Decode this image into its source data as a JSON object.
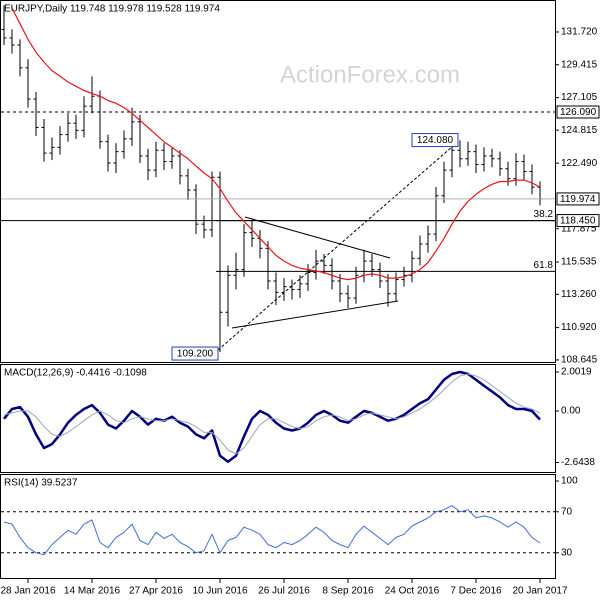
{
  "chart_data": [
    {
      "type": "ohlc",
      "title": "EURJPY,Daily 119.748 119.978 119.528 119.974",
      "watermark": "ActionForex.com",
      "color": "#000000",
      "categories": [
        null,
        null,
        null,
        "28 Jan 2016",
        null,
        null,
        null,
        null,
        null,
        null,
        null,
        "14 Mar 2016",
        null,
        null,
        null,
        null,
        null,
        null,
        null,
        "27 Apr 2016",
        null,
        null,
        null,
        null,
        null,
        null,
        null,
        "10 Jun 2016",
        null,
        null,
        null,
        null,
        null,
        null,
        null,
        "26 Jul 2016",
        null,
        null,
        null,
        null,
        null,
        null,
        null,
        "8 Sep 2016",
        null,
        null,
        null,
        null,
        null,
        null,
        null,
        "24 Oct 2016",
        null,
        null,
        null,
        null,
        null,
        null,
        null,
        "7 Dec 2016",
        null,
        null,
        null,
        null,
        null,
        null,
        null,
        "20 Jan 2017"
      ],
      "open": [
        131.9,
        131.3,
        130.8,
        129.2,
        127.0,
        125.0,
        123.2,
        123.6,
        124.5,
        125.3,
        124.8,
        126.5,
        127.2,
        124.0,
        122.5,
        123.3,
        124.2,
        125.4,
        123.0,
        122.0,
        123.4,
        122.6,
        123.0,
        121.6,
        120.6,
        118.2,
        117.8,
        121.5,
        112.0,
        114.6,
        115.0,
        117.6,
        117.2,
        116.5,
        114.2,
        113.4,
        113.8,
        113.6,
        114.0,
        114.8,
        115.6,
        115.3,
        114.2,
        113.3,
        113.0,
        114.6,
        115.6,
        115.0,
        114.2,
        113.3,
        114.3,
        114.6,
        115.8,
        116.8,
        117.5,
        120.2,
        122.0,
        123.4,
        122.8,
        123.3,
        122.4,
        123.0,
        122.8,
        122.1,
        121.4,
        122.6,
        121.9,
        120.8
      ],
      "high": [
        133.6,
        131.9,
        131.2,
        129.8,
        127.5,
        125.6,
        124.3,
        125.1,
        126.0,
        125.9,
        127.2,
        128.6,
        127.6,
        124.5,
        123.9,
        124.8,
        126.4,
        125.9,
        123.5,
        124.0,
        123.9,
        123.6,
        123.4,
        122.1,
        121.0,
        118.8,
        121.9,
        121.9,
        115.3,
        116.2,
        118.2,
        118.5,
        117.8,
        117.0,
        114.8,
        114.4,
        114.3,
        114.6,
        115.4,
        116.4,
        116.1,
        115.8,
        114.7,
        113.9,
        115.2,
        116.4,
        116.1,
        115.5,
        114.7,
        114.8,
        115.2,
        116.3,
        117.4,
        118.1,
        120.8,
        122.6,
        124.0,
        124.08,
        124.0,
        123.8,
        123.6,
        123.5,
        123.3,
        122.6,
        123.2,
        123.1,
        122.4,
        121.2
      ],
      "low": [
        130.8,
        130.2,
        128.6,
        126.4,
        124.4,
        122.6,
        122.7,
        123.1,
        124.0,
        124.2,
        124.3,
        126.0,
        123.5,
        121.9,
        121.8,
        122.8,
        123.7,
        122.5,
        121.3,
        121.5,
        122.0,
        122.1,
        121.0,
        119.9,
        117.5,
        117.2,
        117.3,
        109.2,
        111.0,
        113.6,
        114.5,
        116.6,
        115.8,
        113.6,
        112.5,
        112.8,
        112.9,
        113.0,
        113.5,
        114.3,
        114.7,
        113.6,
        112.7,
        112.3,
        112.6,
        114.1,
        114.5,
        113.7,
        112.4,
        112.8,
        113.8,
        114.1,
        115.3,
        116.2,
        117.0,
        119.7,
        121.5,
        122.2,
        122.3,
        121.8,
        121.9,
        122.2,
        121.6,
        120.9,
        120.9,
        121.3,
        120.3,
        119.528
      ],
      "close": [
        131.3,
        130.8,
        129.2,
        127.0,
        125.0,
        123.2,
        123.6,
        124.5,
        125.3,
        124.8,
        126.5,
        127.2,
        124.0,
        122.5,
        123.3,
        124.2,
        125.4,
        123.0,
        122.0,
        123.4,
        122.6,
        123.0,
        121.6,
        120.6,
        118.2,
        117.8,
        121.5,
        112.0,
        114.6,
        115.0,
        117.6,
        117.2,
        116.5,
        114.2,
        113.4,
        113.8,
        113.6,
        114.0,
        114.8,
        115.6,
        115.3,
        114.2,
        113.3,
        113.0,
        114.6,
        115.6,
        115.0,
        114.2,
        113.3,
        114.3,
        114.6,
        115.8,
        116.8,
        117.5,
        120.2,
        122.0,
        123.4,
        122.8,
        123.3,
        122.4,
        123.0,
        122.8,
        122.1,
        121.4,
        122.6,
        121.9,
        120.8,
        119.974
      ],
      "series": [
        {
          "color": "#e8151b",
          "values": [
            null,
            133.4,
            132.3,
            131.2,
            130.3,
            129.6,
            129.0,
            128.6,
            128.2,
            127.9,
            127.6,
            127.4,
            127.2,
            126.9,
            126.7,
            126.4,
            126.0,
            125.5,
            125.0,
            124.5,
            124.0,
            123.6,
            123.2,
            122.8,
            122.3,
            121.8,
            121.4,
            120.7,
            119.8,
            119.0,
            118.4,
            117.8,
            117.2,
            116.6,
            116.0,
            115.6,
            115.3,
            115.1,
            115.0,
            114.9,
            114.8,
            114.6,
            114.4,
            114.3,
            114.4,
            114.6,
            114.7,
            114.6,
            114.4,
            114.4,
            114.5,
            114.7,
            115.0,
            115.5,
            116.3,
            117.2,
            118.2,
            119.1,
            119.8,
            120.3,
            120.7,
            121.0,
            121.2,
            121.2,
            121.3,
            121.3,
            121.1,
            120.8
          ]
        }
      ],
      "ylim": [
        108.5,
        133.9
      ],
      "yticks": [
        {
          "value": 131.72,
          "label": "131.720"
        },
        129.415,
        127.105,
        124.815,
        {
          "value": 122.49,
          "label": "122.490"
        },
        117.875,
        115.535,
        {
          "value": 113.26,
          "label": "113.260"
        },
        {
          "value": 110.92,
          "label": "110.920"
        },
        108.645
      ],
      "price_lines": [
        {
          "value": 126.09,
          "label": "126.090",
          "style": "dashed",
          "color": "#000000"
        },
        {
          "value": 119.974,
          "label": "119.974",
          "style": "solid",
          "color": "#b0b0b0"
        },
        {
          "value": 118.45,
          "label": "118.450",
          "style": "solid",
          "color": "#000000"
        }
      ],
      "fib_levels": [
        {
          "label": "38.2",
          "value": 118.45
        },
        {
          "label": "61.8",
          "value": 114.88
        }
      ],
      "annotations": [
        {
          "label": "124.080",
          "value": 124.08
        },
        {
          "label": "109.200",
          "value": 109.2
        }
      ]
    },
    {
      "type": "line",
      "title": "MACD(12,26,9) -0.4416 -0.1098",
      "series": [
        {
          "color": "#000080",
          "width": 2.5,
          "values": [
            -0.4,
            0.1,
            0.2,
            -0.3,
            -1.2,
            -1.9,
            -1.7,
            -1.2,
            -0.6,
            -0.2,
            0.1,
            0.3,
            -0.1,
            -0.7,
            -0.9,
            -0.5,
            0.0,
            -0.3,
            -0.7,
            -0.4,
            -0.5,
            -0.3,
            -0.6,
            -0.8,
            -1.2,
            -1.4,
            -1.0,
            -2.3,
            -2.6,
            -2.3,
            -1.3,
            -0.4,
            0.0,
            -0.2,
            -0.6,
            -0.9,
            -1.0,
            -0.9,
            -0.6,
            -0.2,
            0.0,
            -0.2,
            -0.5,
            -0.6,
            -0.3,
            0.0,
            -0.1,
            -0.3,
            -0.5,
            -0.4,
            -0.2,
            0.1,
            0.4,
            0.6,
            1.1,
            1.6,
            1.9,
            2.0,
            1.9,
            1.6,
            1.3,
            1.0,
            0.7,
            0.3,
            0.1,
            0.1,
            0.0,
            -0.4416
          ]
        },
        {
          "color": "#9aa7b8",
          "width": 1,
          "values": [
            -0.2,
            -0.1,
            0.0,
            0.0,
            -0.3,
            -0.8,
            -1.2,
            -1.3,
            -1.1,
            -0.8,
            -0.5,
            -0.2,
            0.0,
            -0.2,
            -0.5,
            -0.6,
            -0.4,
            -0.3,
            -0.4,
            -0.5,
            -0.5,
            -0.4,
            -0.5,
            -0.6,
            -0.8,
            -1.1,
            -1.1,
            -1.5,
            -2.0,
            -2.2,
            -1.9,
            -1.3,
            -0.7,
            -0.4,
            -0.4,
            -0.6,
            -0.8,
            -0.9,
            -0.8,
            -0.5,
            -0.3,
            -0.2,
            -0.3,
            -0.5,
            -0.4,
            -0.2,
            -0.1,
            -0.2,
            -0.3,
            -0.4,
            -0.3,
            -0.1,
            0.1,
            0.4,
            0.7,
            1.1,
            1.5,
            1.8,
            1.9,
            1.8,
            1.6,
            1.3,
            1.0,
            0.7,
            0.4,
            0.2,
            0.1,
            -0.1098
          ]
        }
      ],
      "ylim": [
        -3.13,
        2.36
      ],
      "yticks": [
        2.0019,
        {
          "value": 0,
          "label": "0.00"
        },
        -2.6438
      ]
    },
    {
      "type": "line",
      "title": "RSI(14) 39.5237",
      "series": [
        {
          "color": "#3f6fd8",
          "width": 1,
          "values": [
            60,
            58,
            45,
            35,
            30,
            28,
            38,
            45,
            52,
            48,
            58,
            62,
            40,
            35,
            45,
            50,
            58,
            42,
            38,
            50,
            44,
            48,
            40,
            36,
            30,
            32,
            48,
            30,
            42,
            45,
            55,
            52,
            48,
            38,
            35,
            40,
            38,
            42,
            48,
            55,
            50,
            42,
            38,
            35,
            48,
            56,
            50,
            44,
            38,
            45,
            48,
            56,
            60,
            64,
            70,
            72,
            76,
            70,
            72,
            64,
            66,
            64,
            60,
            55,
            60,
            55,
            45,
            39.5237
          ]
        }
      ],
      "ylim": [
        5.4,
        105.9
      ],
      "yticks": [
        100,
        70,
        30
      ],
      "levels": [
        70,
        30
      ]
    }
  ]
}
